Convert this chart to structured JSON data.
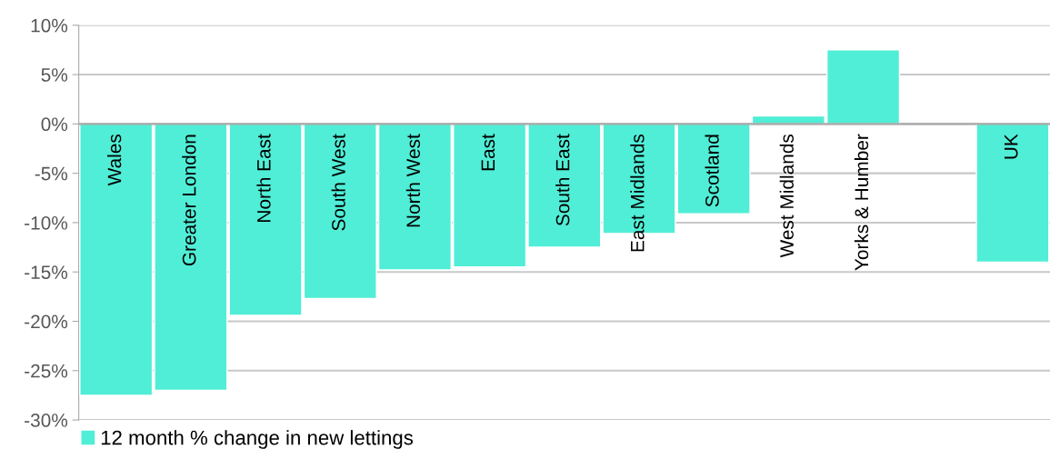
{
  "chart_data": {
    "type": "bar",
    "categories": [
      "Wales",
      "Greater London",
      "North East",
      "South West",
      "North West",
      "East",
      "South East",
      "East Midlands",
      "Scotland",
      "West Midlands",
      "Yorks & Humber",
      null,
      "UK"
    ],
    "series": [
      {
        "name": "12 month % change in new lettings",
        "color": "#50eed6",
        "values": [
          -27.5,
          -27.0,
          -19.4,
          -17.7,
          -14.8,
          -14.5,
          -12.5,
          -11.1,
          -9.1,
          0.8,
          7.5,
          null,
          -14.0
        ]
      }
    ],
    "ylim": [
      -30,
      10
    ],
    "yticks": [
      {
        "value": -30,
        "label": "-30%"
      },
      {
        "value": -25,
        "label": "-25%"
      },
      {
        "value": -20,
        "label": "-20%"
      },
      {
        "value": -15,
        "label": "-15%"
      },
      {
        "value": -10,
        "label": "-10%"
      },
      {
        "value": -5,
        "label": "-5%"
      },
      {
        "value": 0,
        "label": "0%"
      },
      {
        "value": 5,
        "label": "5%"
      },
      {
        "value": 10,
        "label": "10%"
      }
    ],
    "grid": "y",
    "legend": "bottom left"
  }
}
